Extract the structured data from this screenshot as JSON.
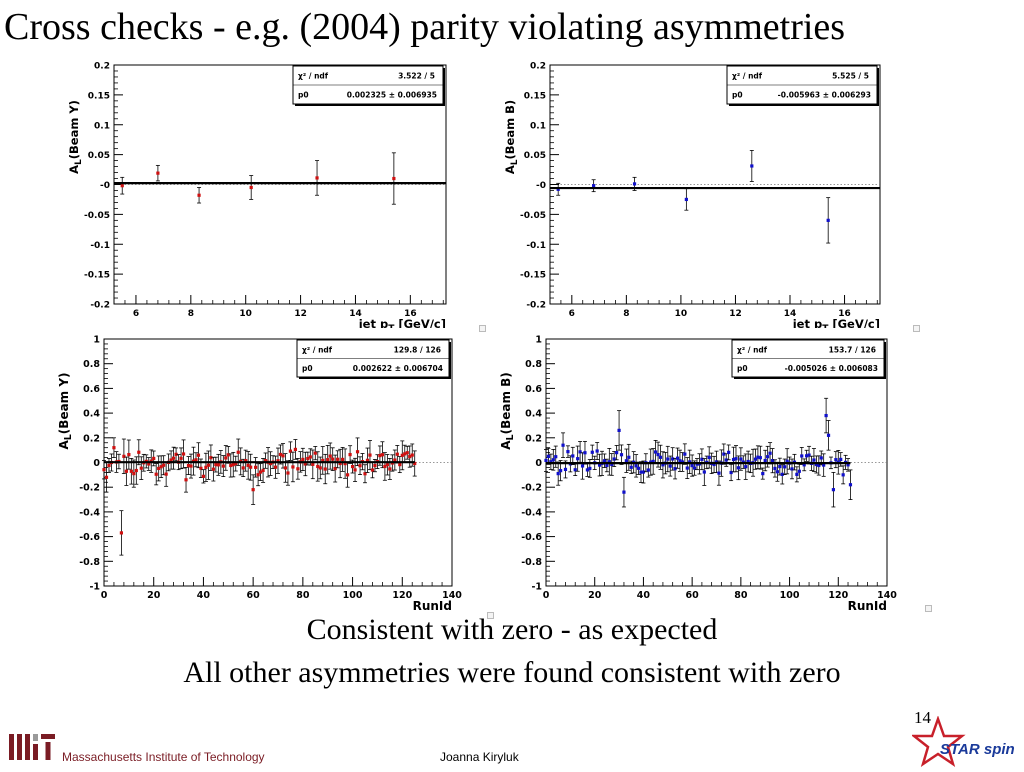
{
  "slide": {
    "title": "Cross checks - e.g. (2004) parity violating asymmetries",
    "conclusion_1": "Consistent with zero - as expected",
    "conclusion_2": "All other asymmetries were found consistent with zero",
    "page_number": "14",
    "footer_institution": "Massachusetts Institute of Technology",
    "footer_author": "Joanna Kiryluk",
    "footer_logo": "STAR spin",
    "mit_logo_text": "MIT"
  },
  "colors": {
    "beam_y": "#d01010",
    "beam_b": "#1010cc",
    "axis": "#000000",
    "mit_red": "#7a1c24",
    "star_blue": "#1a3a9a"
  },
  "chart_data": [
    {
      "type": "scatter",
      "ylabel_main": "A",
      "ylabel_sub": "L",
      "ylabel_rest": "(Beam Y)",
      "xlabel_main": "jet p",
      "xlabel_sub": "T",
      "xlabel_rest": " [GeV/c]",
      "xlim": [
        5.2,
        17.3
      ],
      "ylim": [
        -0.2,
        0.2
      ],
      "xticks": [
        6,
        8,
        10,
        12,
        14,
        16
      ],
      "yticks": [
        -0.2,
        -0.15,
        -0.1,
        -0.05,
        0,
        0.05,
        0.1,
        0.15,
        0.2
      ],
      "ytick_labels": [
        "-0.2",
        "-0.15",
        "-0.1",
        "-0.05",
        "-0",
        "0.05",
        "0.1",
        "0.15",
        "0.2"
      ],
      "stats": {
        "chi2_label": "χ² / ndf",
        "chi2_value": "3.522 / 5",
        "p0_label": "p0",
        "p0_value": "0.002325 ± 0.006935"
      },
      "fit": 0.002325,
      "color": "#d01010",
      "x": [
        5.5,
        6.8,
        8.3,
        10.2,
        12.6,
        15.4
      ],
      "y": [
        -0.002,
        0.019,
        -0.018,
        -0.005,
        0.011,
        0.01
      ],
      "err": [
        0.014,
        0.013,
        0.013,
        0.02,
        0.029,
        0.043
      ]
    },
    {
      "type": "scatter",
      "ylabel_main": "A",
      "ylabel_sub": "L",
      "ylabel_rest": "(Beam B)",
      "xlabel_main": "jet p",
      "xlabel_sub": "T",
      "xlabel_rest": " [GeV/c]",
      "xlim": [
        5.2,
        17.3
      ],
      "ylim": [
        -0.2,
        0.2
      ],
      "xticks": [
        6,
        8,
        10,
        12,
        14,
        16
      ],
      "yticks": [
        -0.2,
        -0.15,
        -0.1,
        -0.05,
        0,
        0.05,
        0.1,
        0.15,
        0.2
      ],
      "ytick_labels": [
        "-0.2",
        "-0.15",
        "-0.1",
        "-0.05",
        "-0",
        "0.05",
        "0.1",
        "0.15",
        "0.2"
      ],
      "stats": {
        "chi2_label": "χ² / ndf",
        "chi2_value": "5.525 / 5",
        "p0_label": "p0",
        "p0_value": "-0.005963 ± 0.006293"
      },
      "fit": -0.005963,
      "color": "#1010cc",
      "x": [
        5.5,
        6.8,
        8.3,
        10.2,
        12.6,
        15.4
      ],
      "y": [
        -0.008,
        -0.002,
        0.001,
        -0.025,
        0.031,
        -0.06
      ],
      "err": [
        0.01,
        0.01,
        0.011,
        0.018,
        0.026,
        0.038
      ]
    },
    {
      "type": "scatter",
      "ylabel_main": "A",
      "ylabel_sub": "L",
      "ylabel_rest": "(Beam Y)",
      "xlabel_main": "RunId",
      "xlabel_sub": "",
      "xlabel_rest": "",
      "xlim": [
        0,
        140
      ],
      "ylim": [
        -1,
        1
      ],
      "xticks": [
        0,
        20,
        40,
        60,
        80,
        100,
        120,
        140
      ],
      "yticks": [
        -1,
        -0.8,
        -0.6,
        -0.4,
        -0.2,
        0,
        0.2,
        0.4,
        0.6,
        0.8,
        1
      ],
      "ytick_labels": [
        "-1",
        "-0.8",
        "-0.6",
        "-0.4",
        "-0.2",
        "0",
        "0.2",
        "0.4",
        "0.6",
        "0.8",
        "1"
      ],
      "stats": {
        "chi2_label": "χ² / ndf",
        "chi2_value": "129.8 / 126",
        "p0_label": "p0",
        "p0_value": "0.002622 ± 0.006704"
      },
      "fit": 0.002622,
      "color": "#d01010",
      "runs": {
        "count": 126,
        "seed": 11,
        "spread": 0.06,
        "err_min": 0.05,
        "err_range": 0.07
      },
      "highlights": [
        {
          "x": 1,
          "y": -0.12,
          "err": 0.12
        },
        {
          "x": 4,
          "y": 0.12,
          "err": 0.08
        },
        {
          "x": 7,
          "y": -0.57,
          "err": 0.18
        },
        {
          "x": 8,
          "y": 0.05,
          "err": 0.14
        },
        {
          "x": 60,
          "y": -0.22,
          "err": 0.12
        },
        {
          "x": 33,
          "y": -0.14,
          "err": 0.1
        },
        {
          "x": 98,
          "y": -0.1,
          "err": 0.1
        }
      ]
    },
    {
      "type": "scatter",
      "ylabel_main": "A",
      "ylabel_sub": "L",
      "ylabel_rest": "(Beam B)",
      "xlabel_main": "RunId",
      "xlabel_sub": "",
      "xlabel_rest": "",
      "xlim": [
        0,
        140
      ],
      "ylim": [
        -1,
        1
      ],
      "xticks": [
        0,
        20,
        40,
        60,
        80,
        100,
        120,
        140
      ],
      "yticks": [
        -1,
        -0.8,
        -0.6,
        -0.4,
        -0.2,
        0,
        0.2,
        0.4,
        0.6,
        0.8,
        1
      ],
      "ytick_labels": [
        "-1",
        "-0.8",
        "-0.6",
        "-0.4",
        "-0.2",
        "0",
        "0.2",
        "0.4",
        "0.6",
        "0.8",
        "1"
      ],
      "stats": {
        "chi2_label": "χ² / ndf",
        "chi2_value": "153.7 / 126",
        "p0_label": "p0",
        "p0_value": "-0.005026 ± 0.006083"
      },
      "fit": -0.005026,
      "color": "#1010cc",
      "runs": {
        "count": 126,
        "seed": 29,
        "spread": 0.055,
        "err_min": 0.045,
        "err_range": 0.065
      },
      "highlights": [
        {
          "x": 30,
          "y": 0.26,
          "err": 0.16
        },
        {
          "x": 32,
          "y": -0.24,
          "err": 0.12
        },
        {
          "x": 115,
          "y": 0.38,
          "err": 0.14
        },
        {
          "x": 116,
          "y": 0.22,
          "err": 0.12
        },
        {
          "x": 118,
          "y": -0.22,
          "err": 0.14
        },
        {
          "x": 125,
          "y": -0.18,
          "err": 0.12
        },
        {
          "x": 7,
          "y": 0.14,
          "err": 0.1
        }
      ]
    }
  ]
}
